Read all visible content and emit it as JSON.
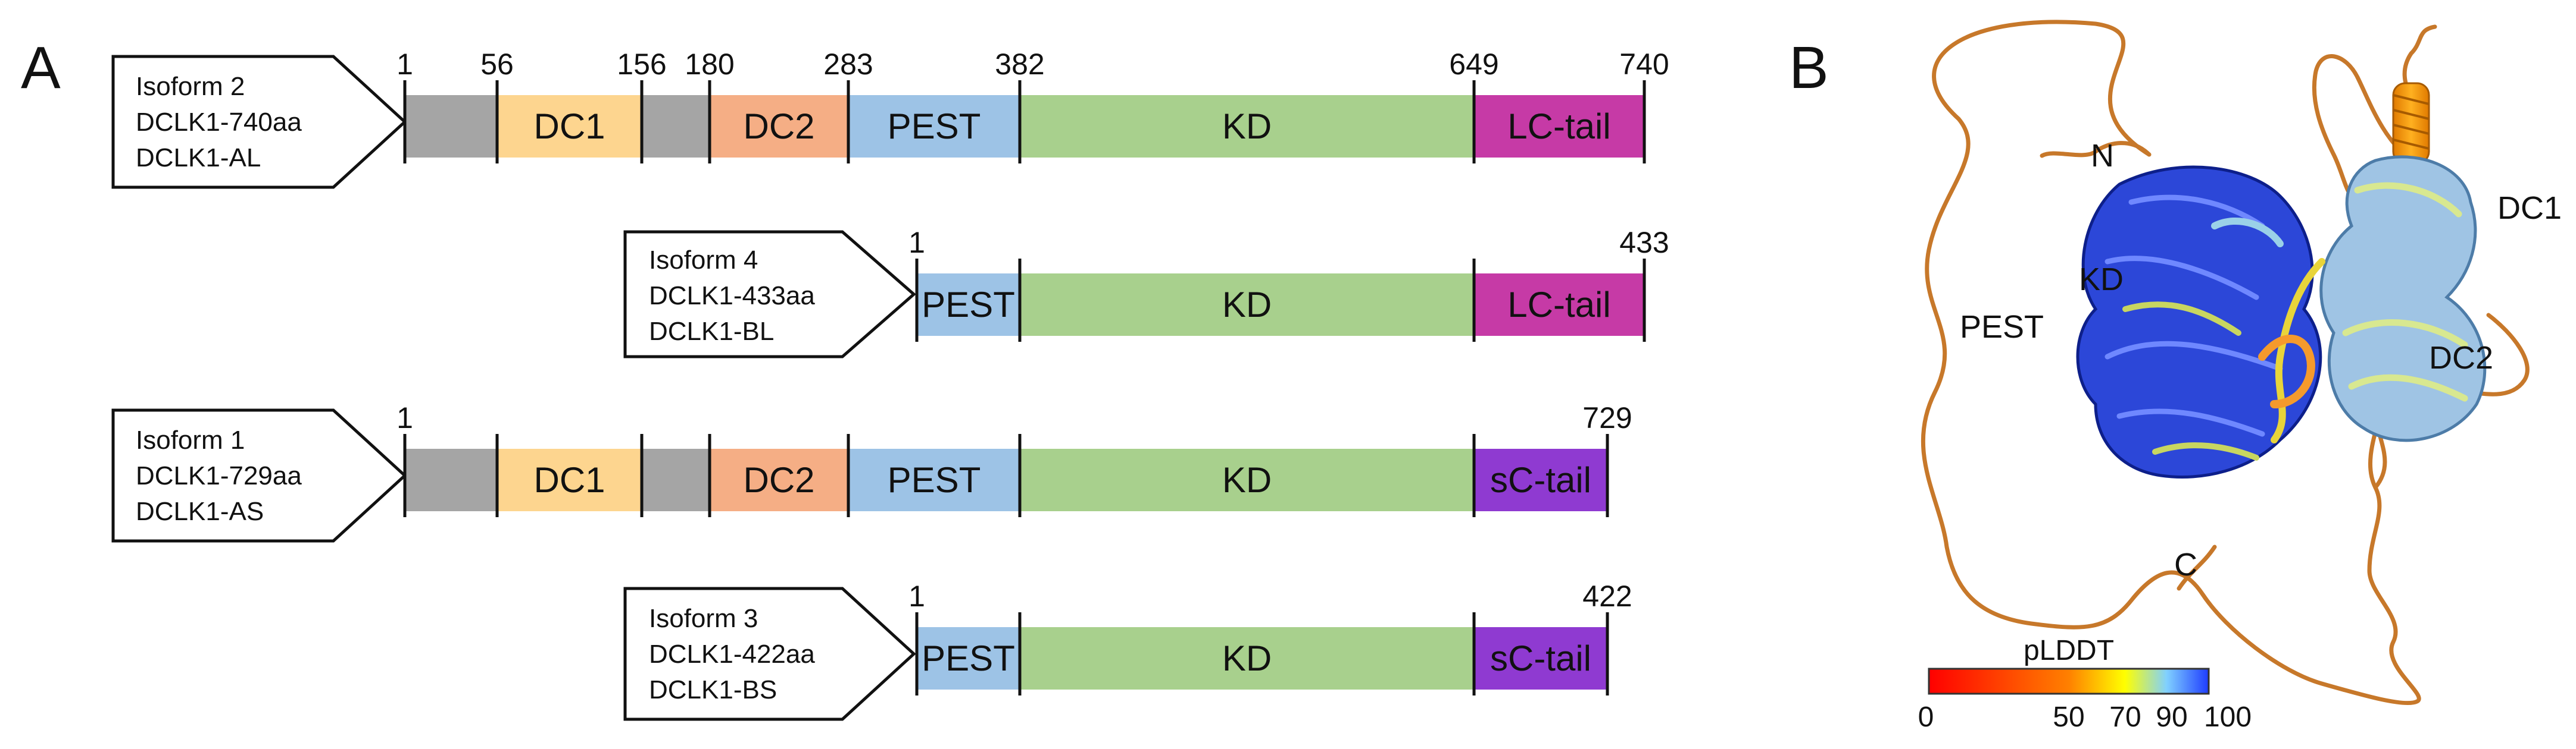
{
  "panel_a": {
    "letter": "A",
    "colors": {
      "linker": "#a5a5a5",
      "DC1": "#fdd58f",
      "DC2": "#f5ae85",
      "PEST": "#9dc3e6",
      "KD": "#a8d08d",
      "LC-tail": "#c63aa6",
      "sC-tail": "#8f3ad1"
    },
    "isoforms": [
      {
        "tag": [
          "Isoform 2",
          "DCLK1-740aa",
          "DCLK1-AL"
        ],
        "numbers": [
          "1",
          "56",
          "156",
          "180",
          "283",
          "382",
          "649",
          "740"
        ],
        "segments": [
          {
            "key": "linker",
            "label": ""
          },
          {
            "key": "DC1",
            "label": "DC1"
          },
          {
            "key": "linker",
            "label": ""
          },
          {
            "key": "DC2",
            "label": "DC2"
          },
          {
            "key": "PEST",
            "label": "PEST"
          },
          {
            "key": "KD",
            "label": "KD"
          },
          {
            "key": "LC-tail",
            "label": "LC-tail"
          }
        ]
      },
      {
        "tag": [
          "Isoform 4",
          "DCLK1-433aa",
          "DCLK1-BL"
        ],
        "numbers": [
          "1",
          "433"
        ],
        "segments": [
          {
            "key": "PEST",
            "label": "PEST"
          },
          {
            "key": "KD",
            "label": "KD"
          },
          {
            "key": "LC-tail",
            "label": "LC-tail"
          }
        ]
      },
      {
        "tag": [
          "Isoform 1",
          "DCLK1-729aa",
          "DCLK1-AS"
        ],
        "numbers": [
          "1",
          "729"
        ],
        "segments": [
          {
            "key": "linker",
            "label": ""
          },
          {
            "key": "DC1",
            "label": "DC1"
          },
          {
            "key": "linker",
            "label": ""
          },
          {
            "key": "DC2",
            "label": "DC2"
          },
          {
            "key": "PEST",
            "label": "PEST"
          },
          {
            "key": "KD",
            "label": "KD"
          },
          {
            "key": "sC-tail",
            "label": "sC-tail"
          }
        ]
      },
      {
        "tag": [
          "Isoform 3",
          "DCLK1-422aa",
          "DCLK1-BS"
        ],
        "numbers": [
          "1",
          "422"
        ],
        "segments": [
          {
            "key": "PEST",
            "label": "PEST"
          },
          {
            "key": "KD",
            "label": "KD"
          },
          {
            "key": "sC-tail",
            "label": "sC-tail"
          }
        ]
      }
    ]
  },
  "panel_b": {
    "letter": "B",
    "labels": {
      "N": "N",
      "KD": "KD",
      "PEST": "PEST",
      "DC1": "DC1",
      "DC2": "DC2",
      "C": "C"
    },
    "colorbar": {
      "title": "pLDDT",
      "ticks": [
        "0",
        "50",
        "70",
        "90",
        "100"
      ],
      "stops": [
        "#ff0000",
        "#ff8000",
        "#ffff00",
        "#80d0ff",
        "#1e3cff"
      ]
    }
  }
}
